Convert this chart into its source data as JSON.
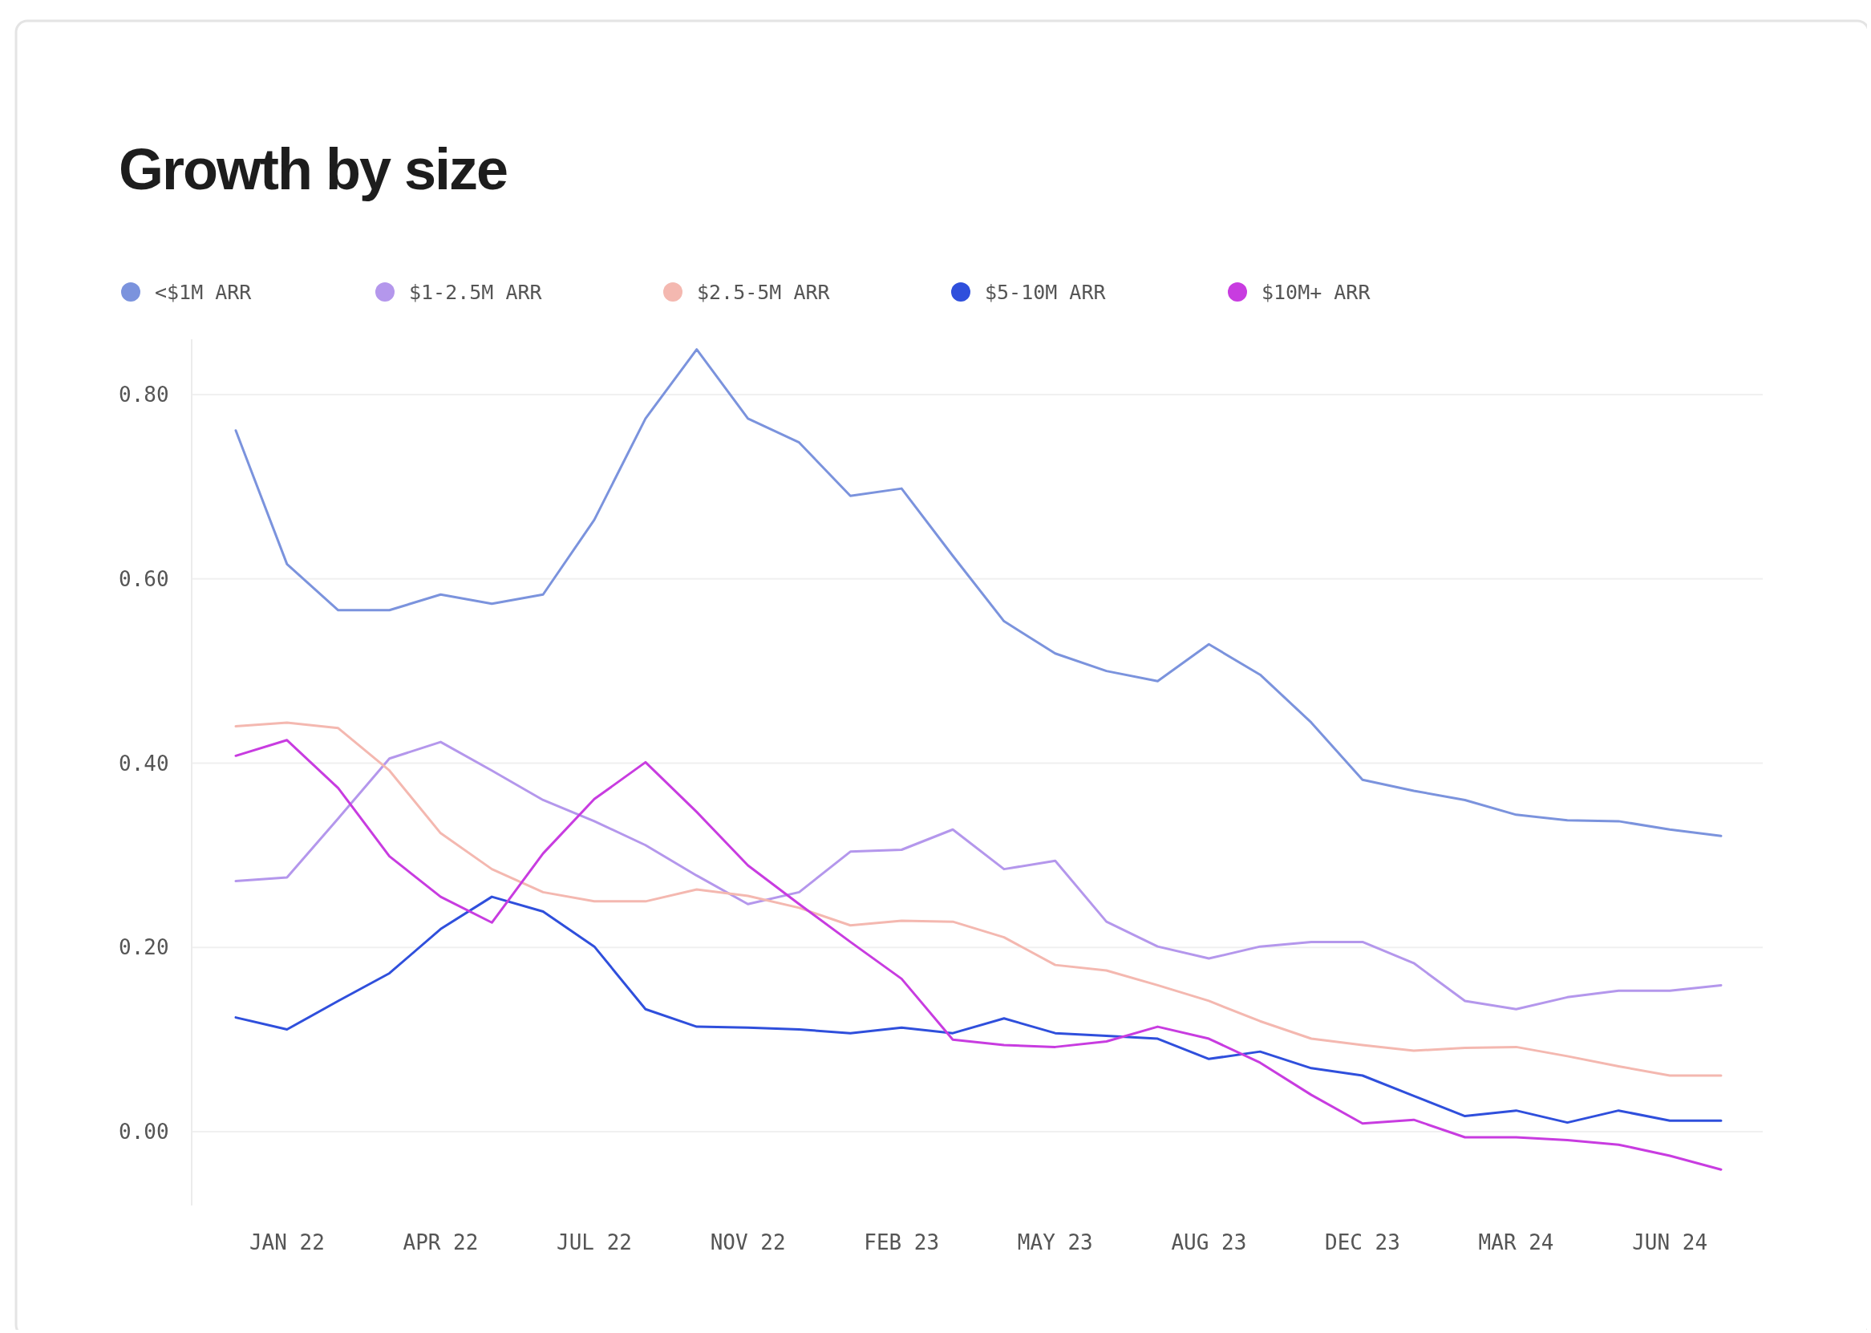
{
  "chart_data": {
    "type": "line",
    "title": "Growth by size",
    "categories": [
      null,
      "JAN 22",
      null,
      null,
      "APR 22",
      null,
      null,
      "JUL 22",
      null,
      null,
      "NOV 22",
      null,
      null,
      "FEB 23",
      null,
      null,
      "MAY 23",
      null,
      null,
      "AUG 23",
      null,
      null,
      "DEC 23",
      null,
      null,
      "MAR 24",
      null,
      null,
      "JUN 24",
      null
    ],
    "series": [
      {
        "name": "<$1M ARR",
        "color": "#7b93dd",
        "values": [
          0.761,
          0.616,
          0.566,
          0.566,
          0.583,
          0.573,
          0.583,
          0.664,
          0.774,
          0.849,
          0.774,
          0.748,
          0.69,
          0.698,
          0.625,
          0.554,
          0.519,
          0.5,
          0.489,
          0.529,
          0.496,
          0.444,
          0.382,
          0.37,
          0.36,
          0.344,
          0.338,
          0.337,
          0.328,
          0.321
        ]
      },
      {
        "name": "$1-2.5M ARR",
        "color": "#b497ec",
        "values": [
          0.272,
          0.276,
          0.34,
          0.405,
          0.423,
          0.392,
          0.36,
          0.337,
          0.311,
          0.278,
          0.247,
          0.26,
          0.304,
          0.306,
          0.328,
          0.285,
          0.294,
          0.228,
          0.201,
          0.188,
          0.201,
          0.206,
          0.206,
          0.183,
          0.142,
          0.133,
          0.146,
          0.153,
          0.153,
          0.159
        ]
      },
      {
        "name": "$2.5-5M ARR",
        "color": "#f4b8b0",
        "values": [
          0.44,
          0.444,
          0.438,
          0.392,
          0.324,
          0.285,
          0.26,
          0.25,
          0.25,
          0.263,
          0.256,
          0.243,
          0.224,
          0.229,
          0.228,
          0.211,
          0.181,
          0.175,
          0.159,
          0.142,
          0.12,
          0.101,
          0.094,
          0.088,
          0.091,
          0.092,
          0.082,
          0.071,
          0.061,
          0.061
        ]
      },
      {
        "name": "$5-10M ARR",
        "color": "#2f4fdc",
        "values": [
          0.124,
          0.111,
          0.142,
          0.172,
          0.22,
          0.255,
          0.239,
          0.201,
          0.133,
          0.114,
          0.113,
          0.111,
          0.107,
          0.113,
          0.107,
          0.123,
          0.107,
          0.104,
          0.101,
          0.079,
          0.087,
          0.069,
          0.061,
          0.039,
          0.017,
          0.023,
          0.01,
          0.023,
          0.012,
          0.012
        ]
      },
      {
        "name": "$10M+ ARR",
        "color": "#c83ce0",
        "values": [
          0.408,
          0.425,
          0.373,
          0.299,
          0.255,
          0.227,
          0.302,
          0.361,
          0.401,
          0.347,
          0.289,
          0.247,
          0.206,
          0.166,
          0.1,
          0.094,
          0.092,
          0.098,
          0.114,
          0.101,
          0.075,
          0.04,
          0.009,
          0.013,
          -0.006,
          -0.006,
          -0.009,
          -0.014,
          -0.026,
          -0.041
        ]
      }
    ],
    "ylim": [
      -0.08,
      0.86
    ],
    "yticks": [
      {
        "value": 0,
        "label": "0.00"
      },
      {
        "value": 0.2,
        "label": "0.20"
      },
      {
        "value": 0.4,
        "label": "0.40"
      },
      {
        "value": 0.6,
        "label": "0.60"
      },
      {
        "value": 0.8,
        "label": "0.80"
      }
    ],
    "grid": "y",
    "legend": "top left",
    "marker": "none",
    "line_style": "solid"
  }
}
